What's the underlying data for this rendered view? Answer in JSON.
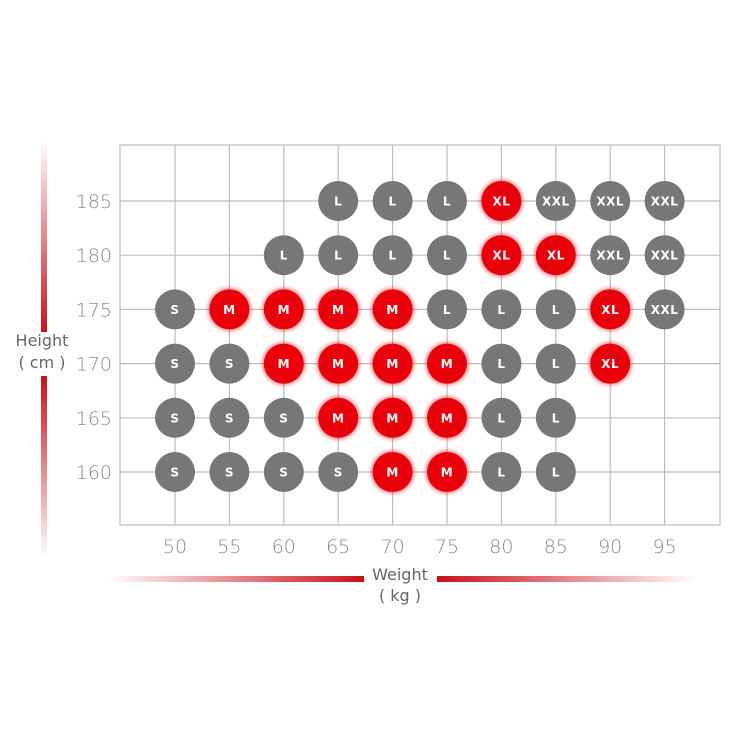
{
  "chart_data": {
    "type": "scatter",
    "title": "",
    "xlabel": "Weight",
    "xunit": "( kg )",
    "ylabel": "Height",
    "yunit": "( cm )",
    "x_ticks": [
      50,
      55,
      60,
      65,
      70,
      75,
      80,
      85,
      90,
      95
    ],
    "y_ticks": [
      160,
      165,
      170,
      175,
      180,
      185
    ],
    "xlim": [
      45,
      100
    ],
    "ylim": [
      155,
      190
    ],
    "grid": true,
    "colors": {
      "S": "#777777",
      "M": "#e8000a",
      "L": "#777777",
      "XL": "#e8000a",
      "XXL": "#777777"
    },
    "points": [
      {
        "h": 185,
        "w": 65,
        "size": "L"
      },
      {
        "h": 185,
        "w": 70,
        "size": "L"
      },
      {
        "h": 185,
        "w": 75,
        "size": "L"
      },
      {
        "h": 185,
        "w": 80,
        "size": "XL"
      },
      {
        "h": 185,
        "w": 85,
        "size": "XXL"
      },
      {
        "h": 185,
        "w": 90,
        "size": "XXL"
      },
      {
        "h": 185,
        "w": 95,
        "size": "XXL"
      },
      {
        "h": 180,
        "w": 60,
        "size": "L"
      },
      {
        "h": 180,
        "w": 65,
        "size": "L"
      },
      {
        "h": 180,
        "w": 70,
        "size": "L"
      },
      {
        "h": 180,
        "w": 75,
        "size": "L"
      },
      {
        "h": 180,
        "w": 80,
        "size": "XL"
      },
      {
        "h": 180,
        "w": 85,
        "size": "XL"
      },
      {
        "h": 180,
        "w": 90,
        "size": "XXL"
      },
      {
        "h": 180,
        "w": 95,
        "size": "XXL"
      },
      {
        "h": 175,
        "w": 50,
        "size": "S"
      },
      {
        "h": 175,
        "w": 55,
        "size": "M"
      },
      {
        "h": 175,
        "w": 60,
        "size": "M"
      },
      {
        "h": 175,
        "w": 65,
        "size": "M"
      },
      {
        "h": 175,
        "w": 70,
        "size": "M"
      },
      {
        "h": 175,
        "w": 75,
        "size": "L"
      },
      {
        "h": 175,
        "w": 80,
        "size": "L"
      },
      {
        "h": 175,
        "w": 85,
        "size": "L"
      },
      {
        "h": 175,
        "w": 90,
        "size": "XL"
      },
      {
        "h": 175,
        "w": 95,
        "size": "XXL"
      },
      {
        "h": 170,
        "w": 50,
        "size": "S"
      },
      {
        "h": 170,
        "w": 55,
        "size": "S"
      },
      {
        "h": 170,
        "w": 60,
        "size": "M"
      },
      {
        "h": 170,
        "w": 65,
        "size": "M"
      },
      {
        "h": 170,
        "w": 70,
        "size": "M"
      },
      {
        "h": 170,
        "w": 75,
        "size": "M"
      },
      {
        "h": 170,
        "w": 80,
        "size": "L"
      },
      {
        "h": 170,
        "w": 85,
        "size": "L"
      },
      {
        "h": 170,
        "w": 90,
        "size": "XL"
      },
      {
        "h": 165,
        "w": 50,
        "size": "S"
      },
      {
        "h": 165,
        "w": 55,
        "size": "S"
      },
      {
        "h": 165,
        "w": 60,
        "size": "S"
      },
      {
        "h": 165,
        "w": 65,
        "size": "M"
      },
      {
        "h": 165,
        "w": 70,
        "size": "M"
      },
      {
        "h": 165,
        "w": 75,
        "size": "M"
      },
      {
        "h": 165,
        "w": 80,
        "size": "L"
      },
      {
        "h": 165,
        "w": 85,
        "size": "L"
      },
      {
        "h": 160,
        "w": 50,
        "size": "S"
      },
      {
        "h": 160,
        "w": 55,
        "size": "S"
      },
      {
        "h": 160,
        "w": 60,
        "size": "S"
      },
      {
        "h": 160,
        "w": 65,
        "size": "S"
      },
      {
        "h": 160,
        "w": 70,
        "size": "M"
      },
      {
        "h": 160,
        "w": 75,
        "size": "M"
      },
      {
        "h": 160,
        "w": 80,
        "size": "L"
      },
      {
        "h": 160,
        "w": 85,
        "size": "L"
      }
    ]
  }
}
